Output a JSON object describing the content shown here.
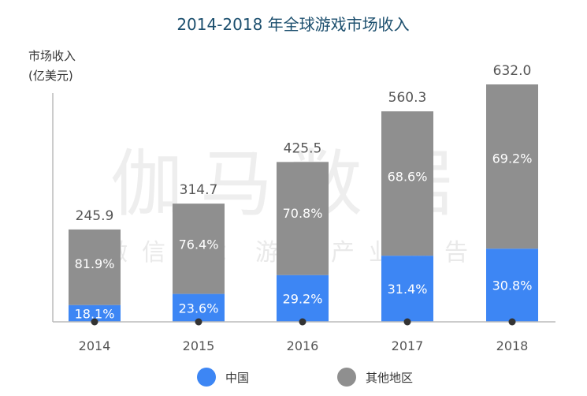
{
  "chart_data": {
    "type": "bar",
    "stacked": true,
    "title": "2014-2018 年全球游戏市场收入",
    "ylabel": [
      "市场收入",
      "(亿美元)"
    ],
    "xlabel": "",
    "categories": [
      "2014",
      "2015",
      "2016",
      "2017",
      "2018"
    ],
    "totals": [
      245.9,
      314.7,
      425.5,
      560.3,
      632.0
    ],
    "total_labels": [
      "245.9",
      "314.7",
      "425.5",
      "560.3",
      "632.0"
    ],
    "series": [
      {
        "name": "中国",
        "color": "#3d86f4",
        "percent": [
          18.1,
          23.6,
          29.2,
          31.4,
          30.8
        ],
        "labels": [
          "18.1%",
          "23.6%",
          "29.2%",
          "31.4%",
          "30.8%"
        ]
      },
      {
        "name": "其他地区",
        "color": "#8f8f8f",
        "percent": [
          81.9,
          76.4,
          70.8,
          68.6,
          69.2
        ],
        "labels": [
          "81.9%",
          "76.4%",
          "70.8%",
          "68.6%",
          "69.2%"
        ]
      }
    ],
    "ylim": [
      0,
      700
    ],
    "grid": false,
    "legend_position": "bottom",
    "watermark": {
      "main": "伽马数据",
      "sub": "微信号：游戏产业报告"
    }
  }
}
